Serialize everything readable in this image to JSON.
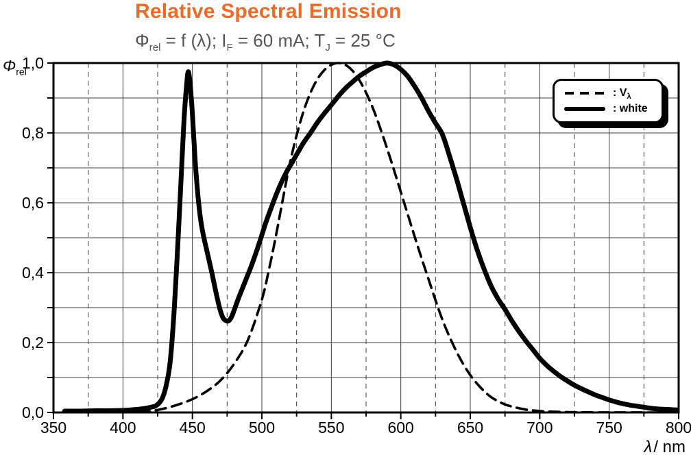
{
  "header": {
    "title": "Relative Spectral Emission",
    "subtitle": {
      "p1": "Φ",
      "p1_sub": "rel",
      "p2": " = f (λ); I",
      "p2_sub": "F",
      "p3": " = 60 mA; T",
      "p3_sub": "J",
      "p4": " = 25 °C"
    }
  },
  "axes": {
    "y_label": {
      "symbol": "Φ",
      "sub": "rel"
    },
    "x_label": {
      "symbol": "λ",
      "unit": "/ nm"
    }
  },
  "legend": {
    "v_prefix": ": V",
    "v_sub": "λ",
    "white_label": ": white"
  },
  "colors": {
    "title_orange": "#F06A26",
    "subtitle_gray": "#53565A",
    "curve_black": "#000000",
    "grid_gray": "#3c3c3c"
  },
  "chart_data": {
    "type": "line",
    "title": "Relative Spectral Emission",
    "subtitle": "Φrel = f (λ); IF = 60 mA; TJ = 25 °C",
    "xlabel": "λ / nm",
    "ylabel": "Φrel",
    "xlim": [
      350,
      800
    ],
    "ylim": [
      0,
      1
    ],
    "grid": {
      "x_solid_step": 50,
      "x_dashed_step": 25,
      "y_step": 0.1,
      "grid_on": true
    },
    "legend_position": "top-right",
    "x_ticks": [
      {
        "v": 350,
        "label": "350"
      },
      {
        "v": 400,
        "label": "400"
      },
      {
        "v": 450,
        "label": "450"
      },
      {
        "v": 500,
        "label": "500"
      },
      {
        "v": 550,
        "label": "550"
      },
      {
        "v": 600,
        "label": "600"
      },
      {
        "v": 650,
        "label": "650"
      },
      {
        "v": 700,
        "label": "700"
      },
      {
        "v": 750,
        "label": "750"
      },
      {
        "v": 800,
        "label": "800"
      }
    ],
    "y_ticks": [
      {
        "v": 1.0,
        "label": "1,0"
      },
      {
        "v": 0.8,
        "label": "0,8"
      },
      {
        "v": 0.6,
        "label": "0,6"
      },
      {
        "v": 0.4,
        "label": "0,4"
      },
      {
        "v": 0.2,
        "label": "0,2"
      },
      {
        "v": 0.0,
        "label": "0,0"
      }
    ],
    "series": [
      {
        "name": "V-lambda",
        "legend_label": ": Vλ",
        "style": "dashed",
        "points": [
          [
            400,
            0.0004
          ],
          [
            410,
            0.0012
          ],
          [
            420,
            0.004
          ],
          [
            430,
            0.0116
          ],
          [
            440,
            0.023
          ],
          [
            450,
            0.038
          ],
          [
            460,
            0.06
          ],
          [
            470,
            0.091
          ],
          [
            480,
            0.139
          ],
          [
            490,
            0.208
          ],
          [
            500,
            0.323
          ],
          [
            505,
            0.407
          ],
          [
            510,
            0.503
          ],
          [
            515,
            0.608
          ],
          [
            520,
            0.71
          ],
          [
            525,
            0.793
          ],
          [
            530,
            0.862
          ],
          [
            535,
            0.915
          ],
          [
            540,
            0.954
          ],
          [
            545,
            0.98
          ],
          [
            550,
            0.995
          ],
          [
            555,
            1.0
          ],
          [
            560,
            0.995
          ],
          [
            565,
            0.979
          ],
          [
            570,
            0.952
          ],
          [
            575,
            0.915
          ],
          [
            580,
            0.87
          ],
          [
            585,
            0.816
          ],
          [
            590,
            0.757
          ],
          [
            595,
            0.695
          ],
          [
            600,
            0.631
          ],
          [
            605,
            0.567
          ],
          [
            610,
            0.503
          ],
          [
            615,
            0.441
          ],
          [
            620,
            0.381
          ],
          [
            625,
            0.321
          ],
          [
            630,
            0.265
          ],
          [
            635,
            0.217
          ],
          [
            640,
            0.175
          ],
          [
            645,
            0.138
          ],
          [
            650,
            0.107
          ],
          [
            655,
            0.082
          ],
          [
            660,
            0.061
          ],
          [
            665,
            0.044
          ],
          [
            670,
            0.032
          ],
          [
            675,
            0.023
          ],
          [
            680,
            0.017
          ],
          [
            690,
            0.0082
          ],
          [
            700,
            0.0041
          ],
          [
            710,
            0.0021
          ],
          [
            720,
            0.001
          ],
          [
            730,
            0.0005
          ],
          [
            740,
            0.00025
          ],
          [
            750,
            0.0001
          ],
          [
            760,
            5e-05
          ],
          [
            780,
            2e-05
          ],
          [
            800,
            1e-05
          ]
        ]
      },
      {
        "name": "white",
        "legend_label": ": white",
        "style": "solid",
        "points": [
          [
            358,
            0.004
          ],
          [
            370,
            0.004
          ],
          [
            380,
            0.005
          ],
          [
            390,
            0.005
          ],
          [
            400,
            0.006
          ],
          [
            408,
            0.008
          ],
          [
            415,
            0.011
          ],
          [
            420,
            0.015
          ],
          [
            424,
            0.02
          ],
          [
            428,
            0.038
          ],
          [
            431,
            0.075
          ],
          [
            434,
            0.145
          ],
          [
            437,
            0.3
          ],
          [
            440,
            0.52
          ],
          [
            442,
            0.68
          ],
          [
            444,
            0.84
          ],
          [
            446,
            0.945
          ],
          [
            447,
            0.975
          ],
          [
            448,
            0.955
          ],
          [
            449,
            0.91
          ],
          [
            450,
            0.855
          ],
          [
            452,
            0.72
          ],
          [
            454,
            0.62
          ],
          [
            456,
            0.55
          ],
          [
            458,
            0.505
          ],
          [
            460,
            0.47
          ],
          [
            462,
            0.435
          ],
          [
            464,
            0.4
          ],
          [
            466,
            0.362
          ],
          [
            468,
            0.325
          ],
          [
            470,
            0.293
          ],
          [
            472,
            0.271
          ],
          [
            474,
            0.263
          ],
          [
            476,
            0.262
          ],
          [
            478,
            0.272
          ],
          [
            480,
            0.292
          ],
          [
            483,
            0.325
          ],
          [
            486,
            0.355
          ],
          [
            489,
            0.385
          ],
          [
            492,
            0.415
          ],
          [
            495,
            0.448
          ],
          [
            498,
            0.483
          ],
          [
            500,
            0.508
          ],
          [
            503,
            0.545
          ],
          [
            506,
            0.578
          ],
          [
            510,
            0.62
          ],
          [
            514,
            0.658
          ],
          [
            518,
            0.69
          ],
          [
            522,
            0.717
          ],
          [
            526,
            0.745
          ],
          [
            530,
            0.772
          ],
          [
            535,
            0.8
          ],
          [
            540,
            0.83
          ],
          [
            545,
            0.856
          ],
          [
            550,
            0.88
          ],
          [
            555,
            0.905
          ],
          [
            560,
            0.927
          ],
          [
            565,
            0.945
          ],
          [
            570,
            0.962
          ],
          [
            575,
            0.975
          ],
          [
            580,
            0.987
          ],
          [
            585,
            0.995
          ],
          [
            590,
            1.0
          ],
          [
            595,
            0.995
          ],
          [
            600,
            0.982
          ],
          [
            605,
            0.962
          ],
          [
            610,
            0.933
          ],
          [
            615,
            0.9
          ],
          [
            620,
            0.862
          ],
          [
            625,
            0.828
          ],
          [
            630,
            0.795
          ],
          [
            635,
            0.735
          ],
          [
            640,
            0.67
          ],
          [
            645,
            0.6
          ],
          [
            650,
            0.53
          ],
          [
            655,
            0.465
          ],
          [
            660,
            0.41
          ],
          [
            665,
            0.362
          ],
          [
            670,
            0.325
          ],
          [
            675,
            0.295
          ],
          [
            680,
            0.262
          ],
          [
            685,
            0.232
          ],
          [
            690,
            0.205
          ],
          [
            695,
            0.18
          ],
          [
            700,
            0.155
          ],
          [
            705,
            0.135
          ],
          [
            710,
            0.118
          ],
          [
            715,
            0.103
          ],
          [
            720,
            0.09
          ],
          [
            725,
            0.078
          ],
          [
            730,
            0.068
          ],
          [
            735,
            0.059
          ],
          [
            740,
            0.05
          ],
          [
            745,
            0.043
          ],
          [
            750,
            0.036
          ],
          [
            755,
            0.03
          ],
          [
            760,
            0.025
          ],
          [
            765,
            0.021
          ],
          [
            770,
            0.018
          ],
          [
            775,
            0.015
          ],
          [
            780,
            0.012
          ],
          [
            785,
            0.01
          ],
          [
            790,
            0.009
          ],
          [
            795,
            0.008
          ],
          [
            800,
            0.007
          ]
        ]
      }
    ]
  }
}
